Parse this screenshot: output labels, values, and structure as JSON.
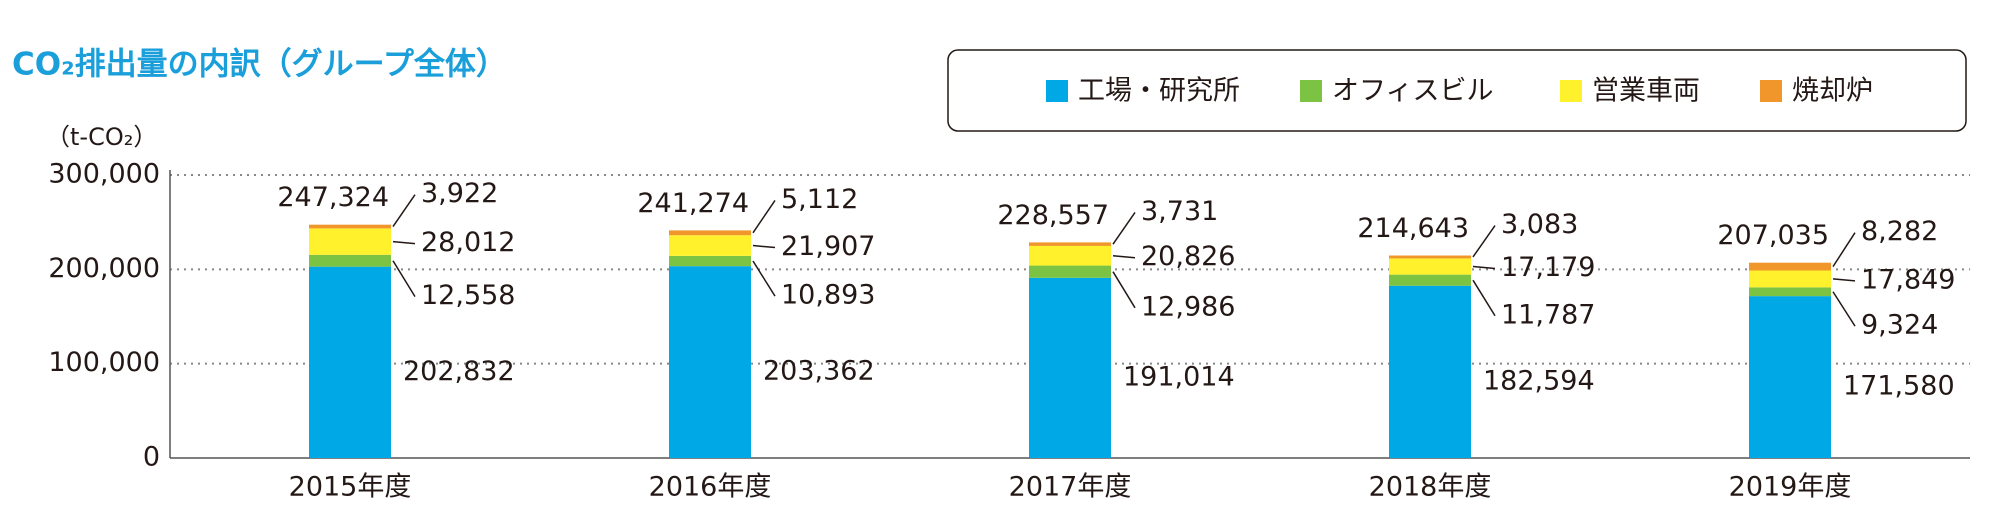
{
  "chart_data": {
    "type": "stacked-bar",
    "title": "CO₂排出量の内訳（グループ全体）",
    "y_label": "（t-CO₂）",
    "categories": [
      "2015年度",
      "2016年度",
      "2017年度",
      "2018年度",
      "2019年度"
    ],
    "series": [
      {
        "name": "工場・研究所",
        "color": "#00a8e6",
        "values": [
          202832,
          203362,
          191014,
          182594,
          171580
        ],
        "value_labels": [
          "202,832",
          "203,362",
          "191,014",
          "182,594",
          "171,580"
        ]
      },
      {
        "name": "オフィスビル",
        "color": "#7cc243",
        "values": [
          12558,
          10893,
          12986,
          11787,
          9324
        ],
        "value_labels": [
          "12,558",
          "10,893",
          "12,986",
          "11,787",
          "9,324"
        ]
      },
      {
        "name": "営業車両",
        "color": "#fff22d",
        "values": [
          28012,
          21907,
          20826,
          17179,
          17849
        ],
        "value_labels": [
          "28,012",
          "21,907",
          "20,826",
          "17,179",
          "17,849"
        ]
      },
      {
        "name": "焼却炉",
        "color": "#f0962a",
        "values": [
          3922,
          5112,
          3731,
          3083,
          8282
        ],
        "value_labels": [
          "3,922",
          "5,112",
          "3,731",
          "3,083",
          "8,282"
        ]
      }
    ],
    "totals": {
      "values": [
        247324,
        241274,
        228557,
        214643,
        207035
      ],
      "value_labels": [
        "247,324",
        "241,274",
        "228,557",
        "214,643",
        "207,035"
      ]
    },
    "ylim": [
      0,
      300000
    ],
    "yticks": [
      0,
      {
        "value": 100000,
        "label": "100,000"
      },
      {
        "value": 200000,
        "label": "200,000"
      },
      {
        "value": 300000,
        "label": "300,000"
      }
    ],
    "grid": true,
    "legend": "top-right"
  }
}
